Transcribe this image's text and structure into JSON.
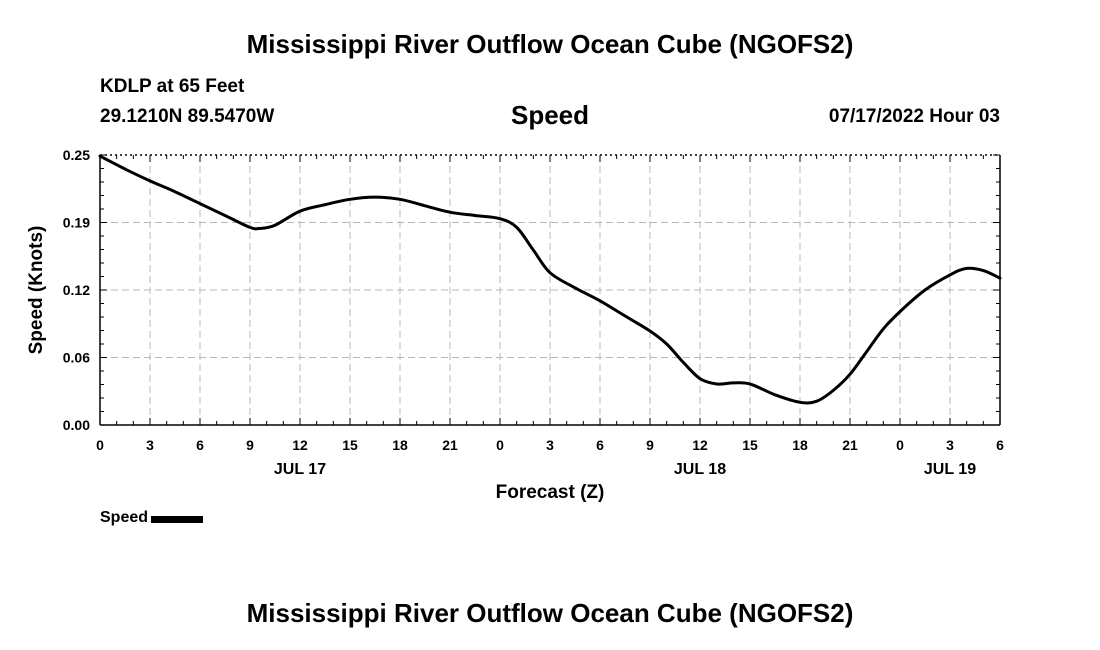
{
  "header": {
    "title": "Mississippi River Outflow Ocean Cube (NGOFS2)",
    "station": "KDLP at 65 Feet",
    "coords": "29.1210N  89.5470W",
    "variable": "Speed",
    "date": "07/17/2022 Hour 03"
  },
  "footer": {
    "title": "Mississippi River Outflow Ocean Cube (NGOFS2)"
  },
  "legend": {
    "label": "Speed"
  },
  "chart_data": {
    "type": "line",
    "title": "Speed",
    "xlabel": "Forecast (Z)",
    "ylabel": "Speed (Knots)",
    "xlim": [
      0,
      54
    ],
    "ylim": [
      0,
      0.25
    ],
    "y_ticks": [
      "0.00",
      "0.06",
      "0.12",
      "0.19",
      "0.25"
    ],
    "y_tick_values": [
      0,
      0.0625,
      0.125,
      0.1875,
      0.25
    ],
    "x_ticks": [
      "0",
      "3",
      "6",
      "9",
      "12",
      "15",
      "18",
      "21",
      "0",
      "3",
      "6",
      "9",
      "12",
      "15",
      "18",
      "21",
      "0",
      "3",
      "6"
    ],
    "x_tick_values": [
      0,
      3,
      6,
      9,
      12,
      15,
      18,
      21,
      24,
      27,
      30,
      33,
      36,
      39,
      42,
      45,
      48,
      51,
      54
    ],
    "date_labels": [
      {
        "x": 12,
        "label": "JUL 17"
      },
      {
        "x": 36,
        "label": "JUL 18"
      },
      {
        "x": 51,
        "label": "JUL 19"
      }
    ],
    "grid": true,
    "line_color": "#000000",
    "series": [
      {
        "name": "Speed",
        "x": [
          0,
          1.5,
          3,
          4.5,
          6,
          7.5,
          9,
          9.6,
          10.5,
          12,
          13.5,
          15,
          16.5,
          18,
          19.5,
          21,
          22.5,
          24,
          25,
          26,
          27,
          28.5,
          30,
          31.5,
          33,
          34,
          35,
          36,
          37,
          38,
          39,
          40.5,
          42,
          43,
          44,
          45,
          46,
          47,
          48,
          49.5,
          51,
          52,
          53,
          54
        ],
        "y": [
          0.249,
          0.237,
          0.226,
          0.216,
          0.205,
          0.194,
          0.183,
          0.182,
          0.185,
          0.198,
          0.204,
          0.209,
          0.211,
          0.209,
          0.203,
          0.197,
          0.194,
          0.191,
          0.183,
          0.162,
          0.141,
          0.127,
          0.115,
          0.101,
          0.087,
          0.075,
          0.058,
          0.043,
          0.038,
          0.039,
          0.038,
          0.028,
          0.021,
          0.022,
          0.032,
          0.047,
          0.068,
          0.089,
          0.105,
          0.125,
          0.139,
          0.145,
          0.143,
          0.136
        ]
      }
    ]
  }
}
